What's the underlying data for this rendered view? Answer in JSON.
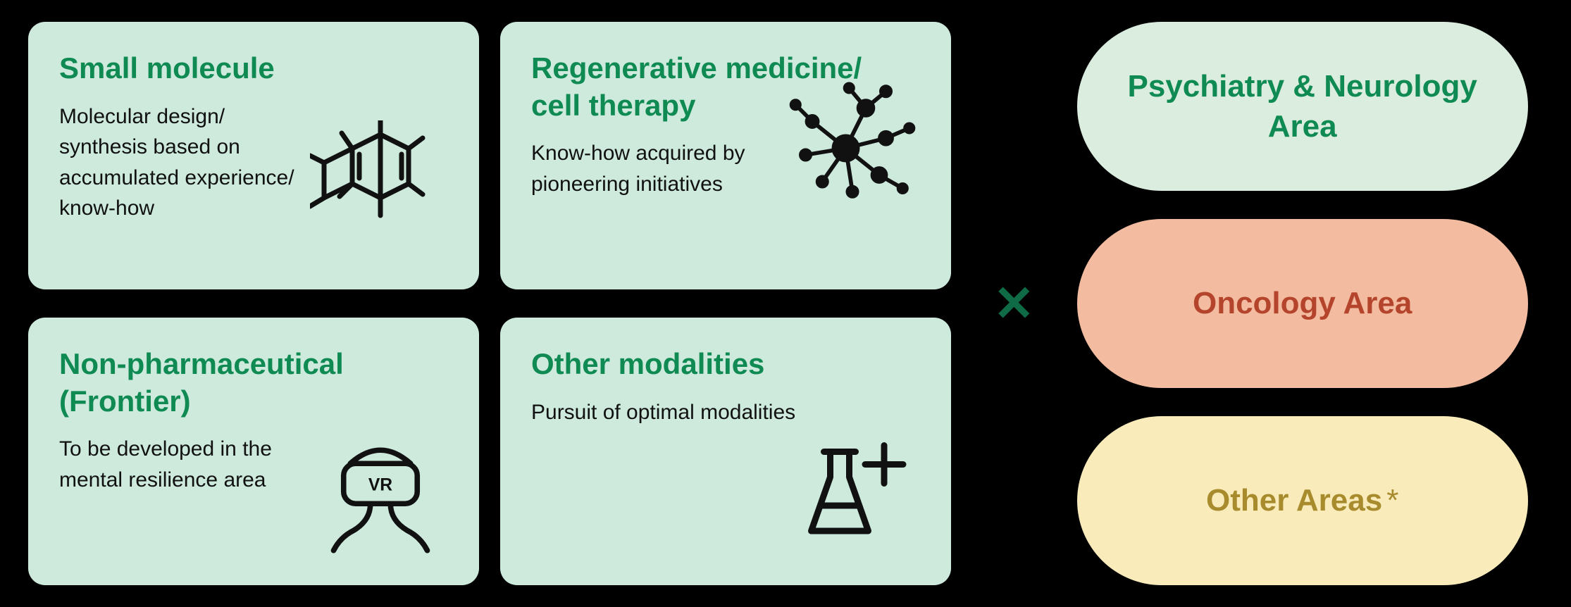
{
  "colors": {
    "card_bg": "#cdeadd",
    "title_green": "#0f8a53",
    "multiply_green": "#0f6b45",
    "pill1_bg": "#daeddf",
    "pill1_text": "#0f8a53",
    "pill2_bg": "#f3bca0",
    "pill2_text": "#b4452c",
    "pill3_bg": "#faecba",
    "pill3_text": "#a78b2d",
    "icon_stroke": "#111111",
    "body_text": "#111111"
  },
  "multiply_symbol": "✕",
  "cards": [
    {
      "title": "Small molecule",
      "body": "Molecular design/\nsynthesis based on accumulated experience/\nknow-how",
      "icon": "molecule"
    },
    {
      "title": "Regenerative medicine/\ncell therapy",
      "body": "Know-how acquired by pioneering initiatives",
      "icon": "network"
    },
    {
      "title": "Non-pharmaceutical (Frontier)",
      "body": "To be developed in the mental resilience area",
      "icon": "vr"
    },
    {
      "title": "Other modalities",
      "body": "Pursuit of optimal modalities",
      "icon": "flask"
    }
  ],
  "pills": [
    {
      "label": "Psychiatry & Neurology Area",
      "bg_key": "pill1_bg",
      "text_key": "pill1_text",
      "asterisk": false
    },
    {
      "label": "Oncology Area",
      "bg_key": "pill2_bg",
      "text_key": "pill2_text",
      "asterisk": false
    },
    {
      "label": "Other Areas",
      "bg_key": "pill3_bg",
      "text_key": "pill3_text",
      "asterisk": true
    }
  ]
}
